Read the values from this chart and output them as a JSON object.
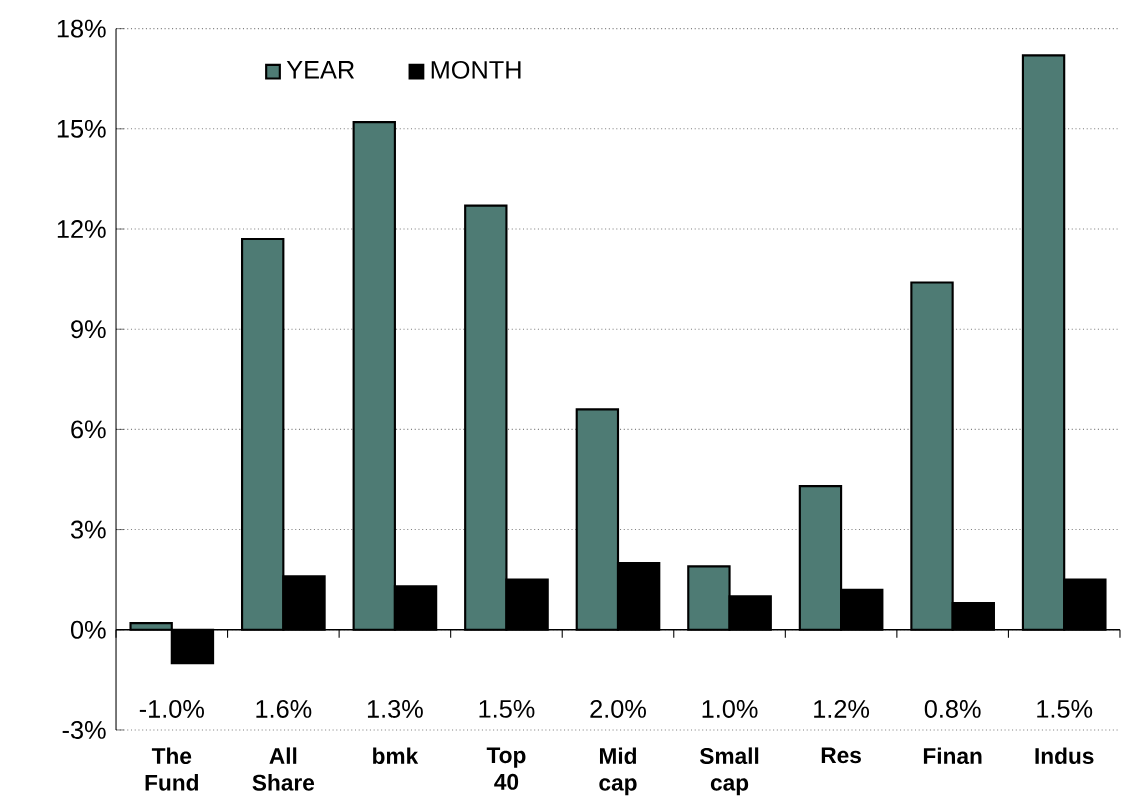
{
  "chart_data": {
    "type": "bar",
    "categories": [
      "The Fund",
      "All Share",
      "bmk",
      "Top 40",
      "Mid cap",
      "Small cap",
      "Res",
      "Finan",
      "Indus"
    ],
    "series": [
      {
        "name": "YEAR",
        "color": "#4e7b74",
        "values": [
          0.2,
          11.7,
          15.2,
          12.7,
          6.6,
          1.9,
          4.3,
          10.4,
          17.2
        ]
      },
      {
        "name": "MONTH",
        "color": "#000000",
        "values": [
          -1.0,
          1.6,
          1.3,
          1.5,
          2.0,
          1.0,
          1.2,
          0.8,
          1.5
        ],
        "value_labels": [
          "-1.0%",
          "1.6%",
          "1.3%",
          "1.5%",
          "2.0%",
          "1.0%",
          "1.2%",
          "0.8%",
          "1.5%"
        ]
      }
    ],
    "ylim": [
      -3,
      18
    ],
    "yticks": [
      {
        "value": -3,
        "label": "-3%"
      },
      {
        "value": 0,
        "label": "0%"
      },
      {
        "value": 3,
        "label": "3%"
      },
      {
        "value": 6,
        "label": "6%"
      },
      {
        "value": 9,
        "label": "9%"
      },
      {
        "value": 12,
        "label": "12%"
      },
      {
        "value": 15,
        "label": "15%"
      },
      {
        "value": 18,
        "label": "18%"
      }
    ],
    "grid": "y",
    "legend": "top left"
  }
}
